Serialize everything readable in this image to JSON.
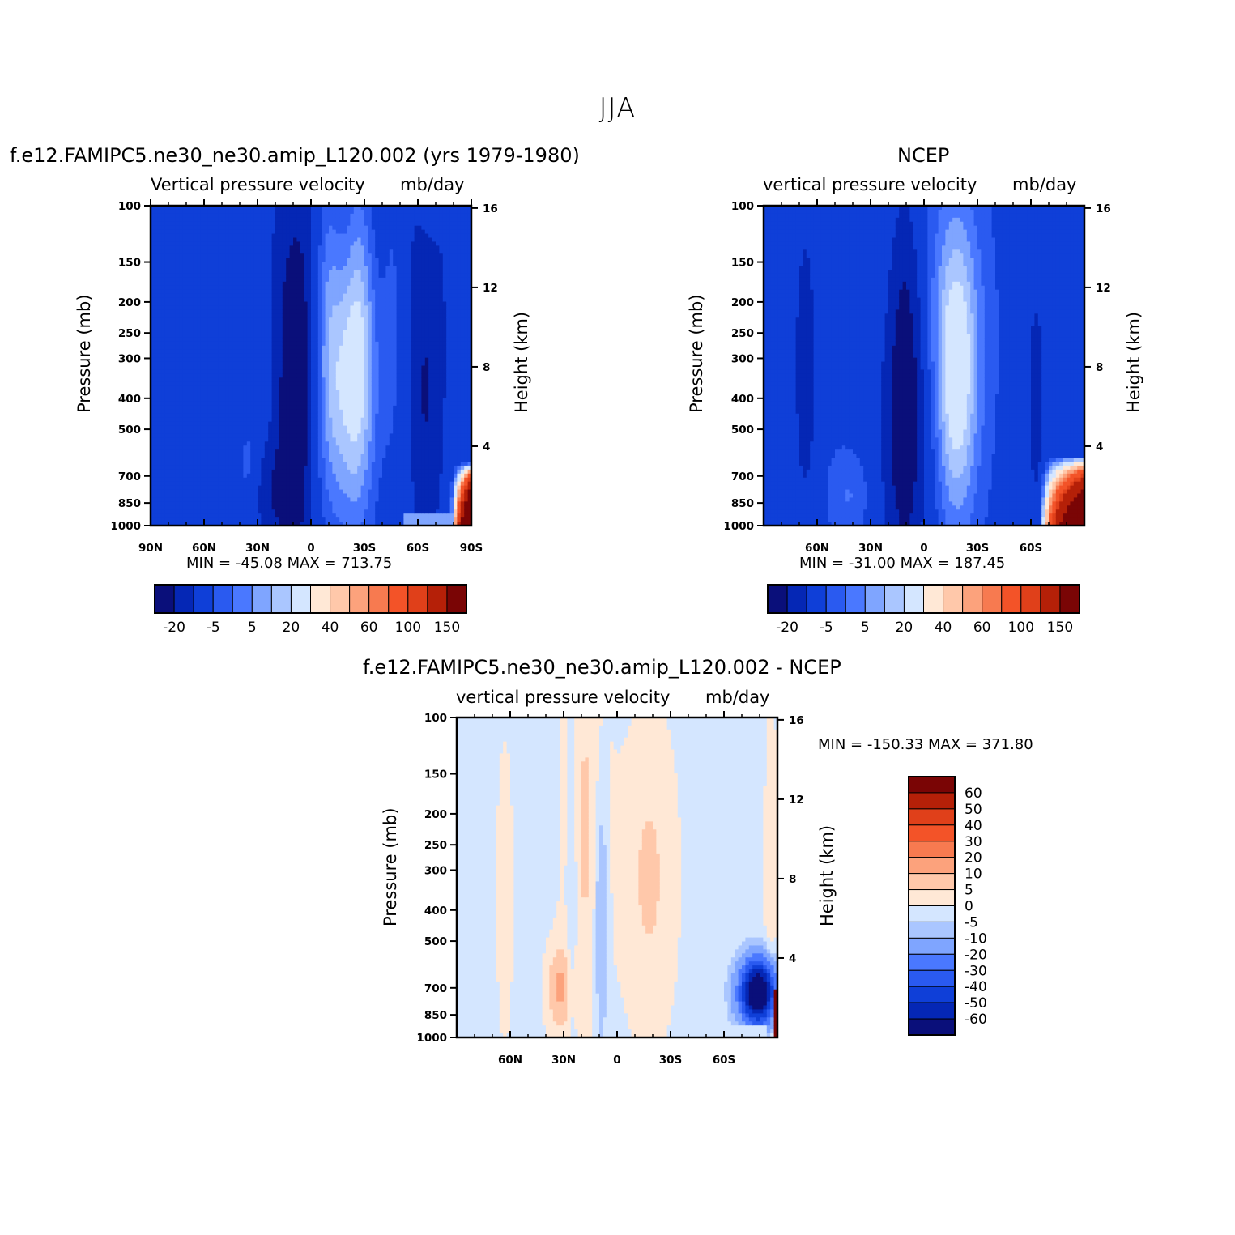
{
  "figure": {
    "title": "JJA"
  },
  "palette": {
    "colors": [
      "#0a0f7a",
      "#0527b5",
      "#0f3fd8",
      "#2a5af0",
      "#4a78ff",
      "#7fa5ff",
      "#aac6ff",
      "#d4e6ff",
      "#ffe8d6",
      "#ffc8aa",
      "#fca27c",
      "#f77a50",
      "#f35328",
      "#e0401a",
      "#b52008",
      "#7a0505"
    ]
  },
  "panels": [
    {
      "id": "model",
      "case_title": "f.e12.FAMIPC5.ne30_ne30.amip_L120.002 (yrs 1979-1980)",
      "variable": "Vertical pressure velocity",
      "units": "mb/day",
      "min_max": "MIN = -45.08   MAX = 713.75",
      "y_label": "Pressure (mb)",
      "y2_label": "Height (km)",
      "x_ticks": [
        "90N",
        "60N",
        "30N",
        "0",
        "30S",
        "60S",
        "90S"
      ],
      "y_ticks": [
        "100",
        "150",
        "200",
        "250",
        "300",
        "400",
        "500",
        "700",
        "850",
        "1000"
      ],
      "y2_ticks": [
        "16",
        "12",
        "8",
        "4"
      ],
      "colorbar_labels": [
        "-20",
        "-5",
        "5",
        "20",
        "40",
        "60",
        "100",
        "150"
      ]
    },
    {
      "id": "obs",
      "case_title": "NCEP",
      "variable": "vertical pressure velocity",
      "units": "mb/day",
      "min_max": "MIN = -31.00   MAX = 187.45",
      "y_label": "Pressure (mb)",
      "y2_label": "Height (km)",
      "x_ticks": [
        "60N",
        "30N",
        "0",
        "30S",
        "60S"
      ],
      "y_ticks": [
        "100",
        "150",
        "200",
        "250",
        "300",
        "400",
        "500",
        "700",
        "850",
        "1000"
      ],
      "y2_ticks": [
        "16",
        "12",
        "8",
        "4"
      ],
      "colorbar_labels": [
        "-20",
        "-5",
        "5",
        "20",
        "40",
        "60",
        "100",
        "150"
      ]
    },
    {
      "id": "diff",
      "case_title": "f.e12.FAMIPC5.ne30_ne30.amip_L120.002 - NCEP",
      "variable": "vertical pressure velocity",
      "units": "mb/day",
      "min_max": "MIN = -150.33   MAX = 371.80",
      "y_label": "Pressure (mb)",
      "y2_label": "Height (km)",
      "x_ticks": [
        "60N",
        "30N",
        "0",
        "30S",
        "60S"
      ],
      "y_ticks": [
        "100",
        "150",
        "200",
        "250",
        "300",
        "400",
        "500",
        "700",
        "850",
        "1000"
      ],
      "y2_ticks": [
        "16",
        "12",
        "8",
        "4"
      ],
      "colorbar_labels": [
        "60",
        "50",
        "40",
        "30",
        "20",
        "10",
        "5",
        "0",
        "-5",
        "-10",
        "-20",
        "-30",
        "-40",
        "-50",
        "-60"
      ]
    }
  ],
  "chart_data": [
    {
      "type": "heatmap",
      "title": "f.e12.FAMIPC5.ne30_ne30.amip_L120.002 (yrs 1979-1980)",
      "subtitle": "Vertical pressure velocity   mb/day",
      "xlabel": "",
      "ylabel": "Pressure (mb)",
      "y2label": "Height (km)",
      "xlim": [
        90,
        -90
      ],
      "ylim": [
        1000,
        100
      ],
      "ylog": true,
      "y2lim": [
        0,
        16
      ],
      "levels": [
        -30,
        -20,
        -10,
        -5,
        0,
        5,
        10,
        20,
        30,
        40,
        50,
        60,
        80,
        100,
        150
      ],
      "min": -45.08,
      "max": 713.75,
      "features": [
        {
          "lat": 10,
          "p_top": 170,
          "p_bottom": 1000,
          "value": -40
        },
        {
          "lat": -18,
          "p_top": 180,
          "p_bottom": 920,
          "value": 5
        },
        {
          "lat": -75,
          "p_top": 700,
          "p_bottom": 1000,
          "value": 150
        }
      ]
    },
    {
      "type": "heatmap",
      "title": "NCEP",
      "subtitle": "vertical pressure velocity   mb/day",
      "xlabel": "",
      "ylabel": "Pressure (mb)",
      "y2label": "Height (km)",
      "xlim": [
        90,
        -90
      ],
      "ylim": [
        1000,
        100
      ],
      "ylog": true,
      "y2lim": [
        0,
        16
      ],
      "levels": [
        -30,
        -20,
        -10,
        -5,
        0,
        5,
        10,
        20,
        30,
        40,
        50,
        60,
        80,
        100,
        150
      ],
      "min": -31.0,
      "max": 187.45,
      "features": [
        {
          "lat": 10,
          "p_top": 150,
          "p_bottom": 1000,
          "value": -30
        },
        {
          "lat": -20,
          "p_top": 160,
          "p_bottom": 900,
          "value": 5
        },
        {
          "lat": -80,
          "p_top": 700,
          "p_bottom": 1000,
          "value": 150
        }
      ]
    },
    {
      "type": "heatmap",
      "title": "f.e12.FAMIPC5.ne30_ne30.amip_L120.002 - NCEP",
      "subtitle": "vertical pressure velocity   mb/day",
      "xlabel": "",
      "ylabel": "Pressure (mb)",
      "y2label": "Height (km)",
      "xlim": [
        90,
        -90
      ],
      "ylim": [
        1000,
        100
      ],
      "ylog": true,
      "y2lim": [
        0,
        16
      ],
      "levels": [
        -60,
        -50,
        -40,
        -30,
        -20,
        -10,
        -5,
        0,
        5,
        10,
        20,
        30,
        40,
        50,
        60
      ],
      "min": -150.33,
      "max": 371.8,
      "features": [
        {
          "lat": 20,
          "p_top": 110,
          "p_bottom": 1000,
          "value": 5
        },
        {
          "lat": 0,
          "p_top": 250,
          "p_bottom": 1000,
          "value": -10
        },
        {
          "lat": -80,
          "p_top": 680,
          "p_bottom": 950,
          "value": -60
        }
      ]
    }
  ]
}
